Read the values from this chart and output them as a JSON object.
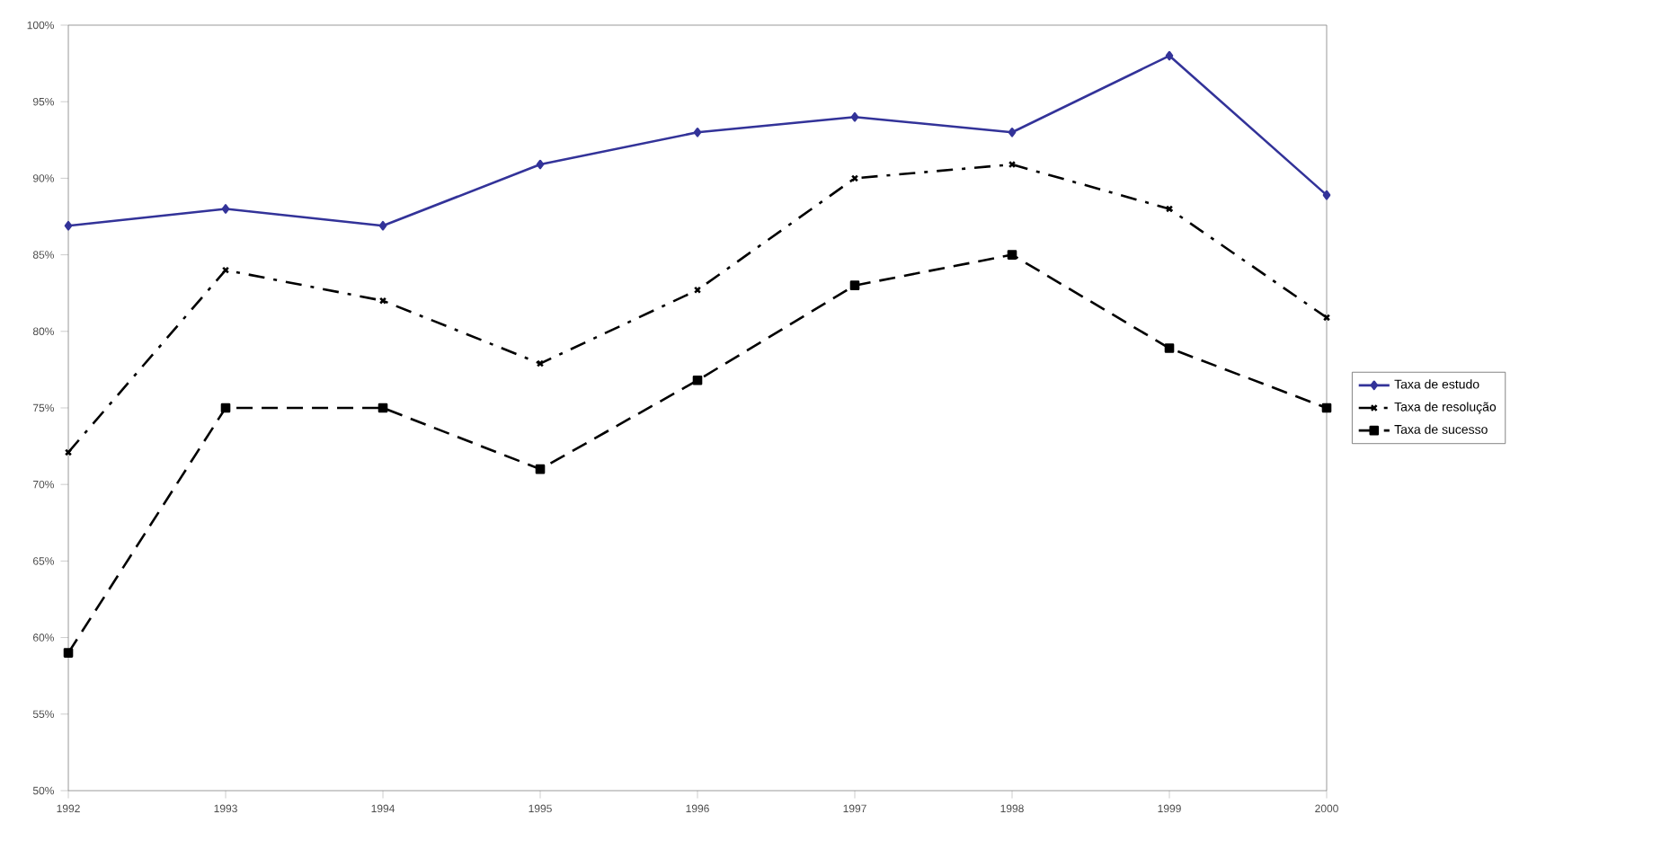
{
  "chart_data": {
    "type": "line",
    "categories": [
      "1992",
      "1993",
      "1994",
      "1995",
      "1996",
      "1997",
      "1998",
      "1999",
      "2000"
    ],
    "ylim": [
      50,
      100
    ],
    "yticks": [
      {
        "value": 50,
        "label": "50%"
      },
      {
        "value": 55,
        "label": "55%"
      },
      {
        "value": 60,
        "label": "60%"
      },
      {
        "value": 65,
        "label": "65%"
      },
      {
        "value": 70,
        "label": "70%"
      },
      {
        "value": 75,
        "label": "75%"
      },
      {
        "value": 80,
        "label": "80%"
      },
      {
        "value": 85,
        "label": "85%"
      },
      {
        "value": 90,
        "label": "90%"
      },
      {
        "value": 95,
        "label": "95%"
      },
      {
        "value": 100,
        "label": "100%"
      }
    ],
    "series": [
      {
        "name": "Taxa de estudo",
        "color": "#333399",
        "marker": "diamond",
        "line_style": "solid",
        "values": [
          86.9,
          88.0,
          86.9,
          90.9,
          93.0,
          94.0,
          93.0,
          98.0,
          88.9
        ]
      },
      {
        "name": "Taxa de resolução",
        "color": "#000000",
        "marker": "cross",
        "line_style": "dashdot",
        "values": [
          72.1,
          84.0,
          82.0,
          77.9,
          82.7,
          90.0,
          90.9,
          88.0,
          80.9
        ]
      },
      {
        "name": "Taxa de sucesso",
        "color": "#000000",
        "marker": "square",
        "line_style": "dashed",
        "values": [
          59.0,
          75.0,
          75.0,
          71.0,
          76.8,
          83.0,
          85.0,
          78.9,
          75.0
        ]
      }
    ],
    "legend": "right",
    "grid": false
  }
}
